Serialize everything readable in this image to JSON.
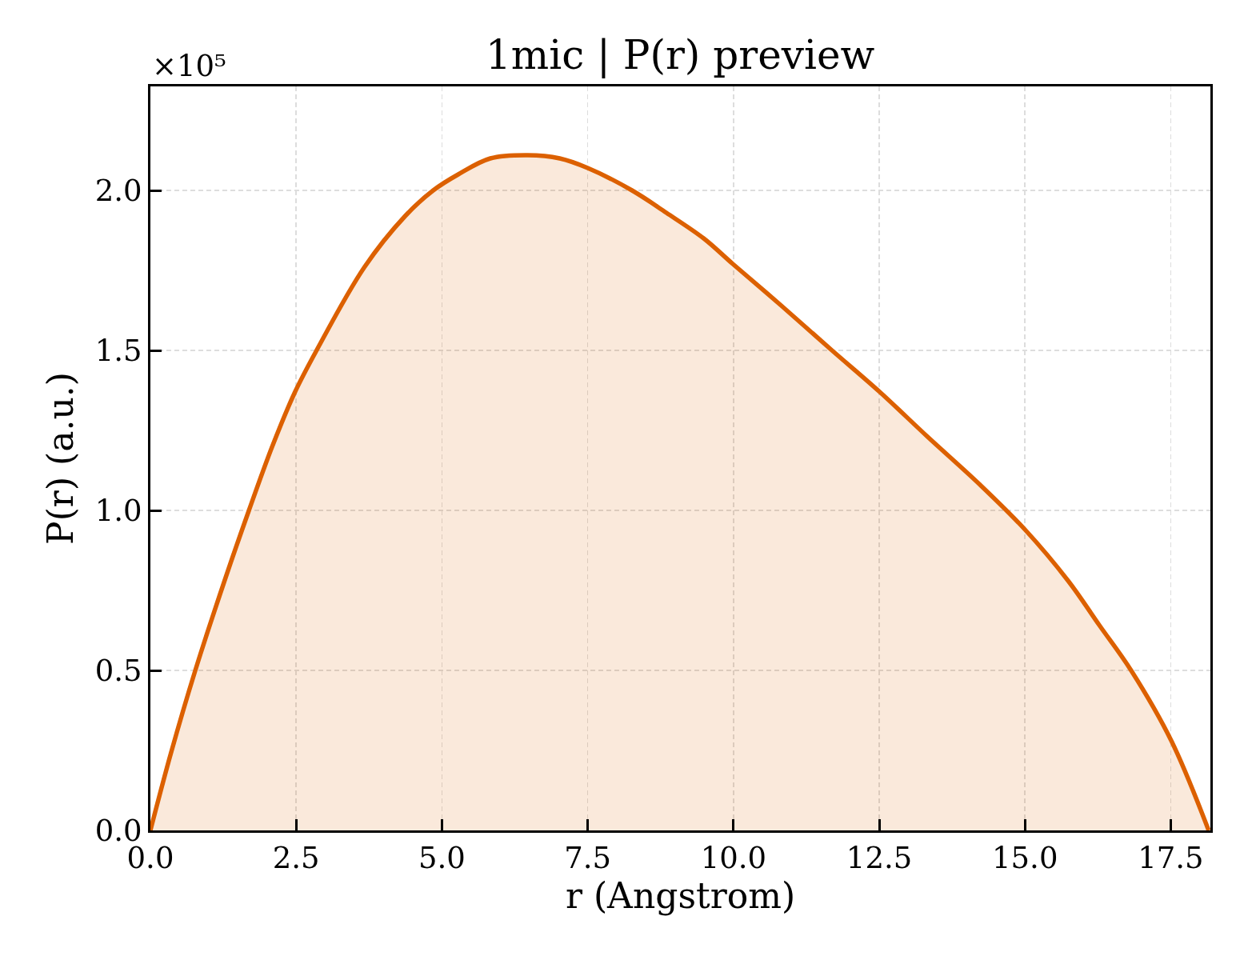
{
  "chart_data": {
    "type": "area",
    "title": "1mic | P(r) preview",
    "xlabel": "r (Angstrom)",
    "ylabel": "P(r) (a.u.)",
    "annotations": [
      "×10⁵"
    ],
    "color": "#dc6000",
    "x": [
      0,
      0.35,
      0.77,
      1.29,
      1.69,
      2.09,
      2.48,
      2.85,
      3.67,
      4.37,
      4.85,
      5.28,
      5.83,
      6.47,
      7.02,
      7.5,
      8.26,
      8.85,
      9.49,
      9.99,
      10.82,
      11.69,
      12.51,
      13.33,
      14.23,
      15.0,
      15.74,
      16.28,
      16.82,
      17.51,
      18.15
    ],
    "values": [
      0,
      0.24,
      0.5,
      0.79,
      1.0,
      1.2,
      1.37,
      1.5,
      1.76,
      1.92,
      2.0,
      2.05,
      2.1,
      2.11,
      2.1,
      2.07,
      2.0,
      1.93,
      1.85,
      1.77,
      1.64,
      1.5,
      1.37,
      1.23,
      1.08,
      0.94,
      0.78,
      0.64,
      0.5,
      0.28,
      0
    ],
    "xlim": [
      0,
      18.18
    ],
    "xticks": [
      {
        "value": 0,
        "label": "0.0"
      },
      2.5,
      {
        "value": 5,
        "label": "5.0"
      },
      7.5,
      {
        "value": 10,
        "label": "10.0"
      },
      12.5,
      {
        "value": 15,
        "label": "15.0"
      },
      17.5
    ],
    "ylim": [
      0,
      2.325
    ],
    "yticks": [
      {
        "value": 0,
        "label": "0.0"
      },
      0.5,
      {
        "value": 1,
        "label": "1.0"
      },
      1.5,
      {
        "value": 2,
        "label": "2.0"
      }
    ],
    "grid": true
  }
}
